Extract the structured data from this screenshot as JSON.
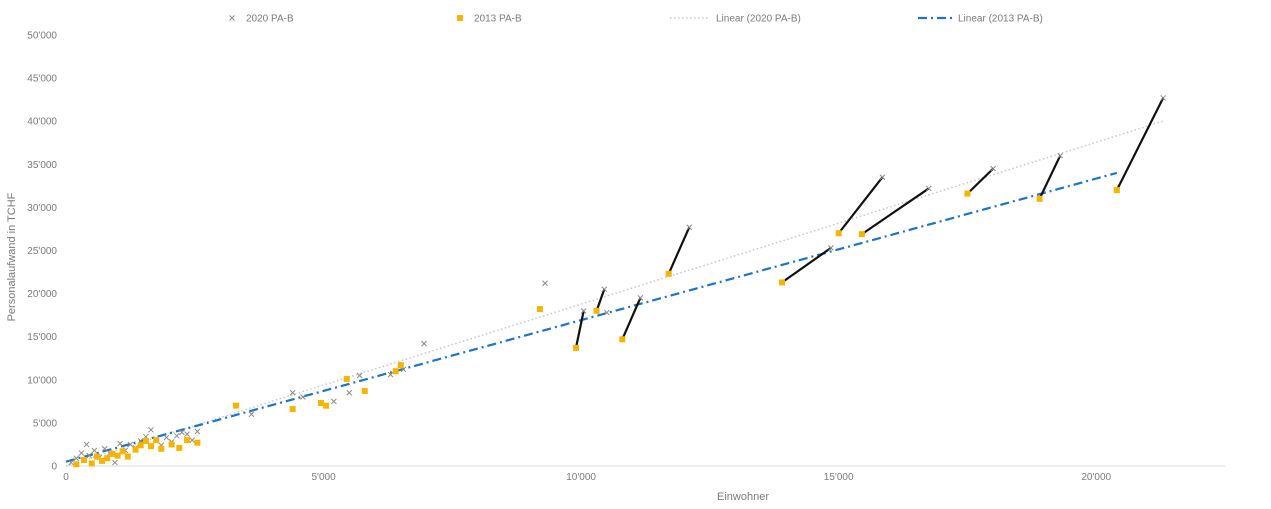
{
  "chart_data": {
    "type": "scatter",
    "title": "",
    "xlabel": "Einwohner",
    "ylabel": "Personalaufwand in TCHF",
    "xlim": [
      0,
      22500
    ],
    "ylim": [
      0,
      50000
    ],
    "x_ticks": [
      0,
      5000,
      10000,
      15000,
      20000
    ],
    "x_tick_labels": [
      "0",
      "5'000",
      "10'000",
      "15'000",
      "20'000"
    ],
    "y_ticks": [
      0,
      5000,
      10000,
      15000,
      20000,
      25000,
      30000,
      35000,
      40000,
      45000,
      50000
    ],
    "y_tick_labels": [
      "0",
      "5'000",
      "10'000",
      "15'000",
      "20'000",
      "25'000",
      "30'000",
      "35'000",
      "40'000",
      "45'000",
      "50'000"
    ],
    "grid": false,
    "legend_position": "top",
    "legend": [
      {
        "label": "2020 PA-B",
        "marker": "x",
        "color": "#8a8a8a"
      },
      {
        "label": "2013 PA-B",
        "marker": "square",
        "color": "#f5b400"
      },
      {
        "label": "Linear (2020 PA-B)",
        "line": "dotted",
        "color": "#c8c8c8"
      },
      {
        "label": "Linear (2013 PA-B)",
        "line": "dash-dot",
        "color": "#1f73c0"
      }
    ],
    "series": [
      {
        "name": "2020 PA-B",
        "marker": "x",
        "color": "#8a8a8a",
        "points": [
          {
            "x": 100,
            "y": 400
          },
          {
            "x": 200,
            "y": 900
          },
          {
            "x": 300,
            "y": 1500
          },
          {
            "x": 400,
            "y": 2500
          },
          {
            "x": 450,
            "y": 1200
          },
          {
            "x": 550,
            "y": 1800
          },
          {
            "x": 650,
            "y": 1000
          },
          {
            "x": 750,
            "y": 2000
          },
          {
            "x": 850,
            "y": 1500
          },
          {
            "x": 950,
            "y": 400
          },
          {
            "x": 1050,
            "y": 2600
          },
          {
            "x": 1150,
            "y": 1800
          },
          {
            "x": 1250,
            "y": 2500
          },
          {
            "x": 1350,
            "y": 2100
          },
          {
            "x": 1450,
            "y": 2900
          },
          {
            "x": 1550,
            "y": 3400
          },
          {
            "x": 1650,
            "y": 4200
          },
          {
            "x": 1750,
            "y": 3100
          },
          {
            "x": 1850,
            "y": 2400
          },
          {
            "x": 1950,
            "y": 3300
          },
          {
            "x": 2050,
            "y": 2800
          },
          {
            "x": 2150,
            "y": 3500
          },
          {
            "x": 2250,
            "y": 3900
          },
          {
            "x": 2350,
            "y": 3700
          },
          {
            "x": 2450,
            "y": 3000
          },
          {
            "x": 2550,
            "y": 4000
          },
          {
            "x": 3600,
            "y": 6000
          },
          {
            "x": 4400,
            "y": 8500
          },
          {
            "x": 4600,
            "y": 8000
          },
          {
            "x": 5200,
            "y": 7500
          },
          {
            "x": 5500,
            "y": 8500
          },
          {
            "x": 5700,
            "y": 10500
          },
          {
            "x": 6300,
            "y": 10600
          },
          {
            "x": 6550,
            "y": 11200
          },
          {
            "x": 6950,
            "y": 14200
          },
          {
            "x": 9300,
            "y": 21200
          },
          {
            "x": 10050,
            "y": 18000
          },
          {
            "x": 10450,
            "y": 20500
          },
          {
            "x": 10500,
            "y": 17800
          },
          {
            "x": 11150,
            "y": 19500
          },
          {
            "x": 12100,
            "y": 27700
          },
          {
            "x": 14850,
            "y": 25300
          },
          {
            "x": 15850,
            "y": 33500
          },
          {
            "x": 16750,
            "y": 32200
          },
          {
            "x": 18000,
            "y": 34500
          },
          {
            "x": 19300,
            "y": 36000
          },
          {
            "x": 21300,
            "y": 42700
          }
        ]
      },
      {
        "name": "2013 PA-B",
        "marker": "square",
        "color": "#f5b400",
        "points": [
          {
            "x": 200,
            "y": 200
          },
          {
            "x": 350,
            "y": 700
          },
          {
            "x": 500,
            "y": 300
          },
          {
            "x": 600,
            "y": 1100
          },
          {
            "x": 700,
            "y": 600
          },
          {
            "x": 800,
            "y": 900
          },
          {
            "x": 900,
            "y": 1400
          },
          {
            "x": 1000,
            "y": 1200
          },
          {
            "x": 1100,
            "y": 1700
          },
          {
            "x": 1200,
            "y": 1100
          },
          {
            "x": 1350,
            "y": 1900
          },
          {
            "x": 1450,
            "y": 2400
          },
          {
            "x": 1550,
            "y": 2900
          },
          {
            "x": 1650,
            "y": 2300
          },
          {
            "x": 1750,
            "y": 3000
          },
          {
            "x": 1850,
            "y": 2000
          },
          {
            "x": 2050,
            "y": 2500
          },
          {
            "x": 2200,
            "y": 2100
          },
          {
            "x": 2350,
            "y": 3000
          },
          {
            "x": 2550,
            "y": 2700
          },
          {
            "x": 3300,
            "y": 7000
          },
          {
            "x": 4400,
            "y": 6600
          },
          {
            "x": 4950,
            "y": 7300
          },
          {
            "x": 5050,
            "y": 7000
          },
          {
            "x": 5450,
            "y": 10100
          },
          {
            "x": 5800,
            "y": 8700
          },
          {
            "x": 6400,
            "y": 11000
          },
          {
            "x": 6500,
            "y": 11700
          },
          {
            "x": 9200,
            "y": 18200
          },
          {
            "x": 9900,
            "y": 13700
          },
          {
            "x": 10300,
            "y": 18000
          },
          {
            "x": 10800,
            "y": 14700
          },
          {
            "x": 11700,
            "y": 22300
          },
          {
            "x": 13900,
            "y": 21300
          },
          {
            "x": 15000,
            "y": 27000
          },
          {
            "x": 15450,
            "y": 26900
          },
          {
            "x": 17500,
            "y": 31600
          },
          {
            "x": 18900,
            "y": 31000
          },
          {
            "x": 20400,
            "y": 32000
          }
        ]
      }
    ],
    "connectors": [
      {
        "from": [
          9900,
          13700
        ],
        "to": [
          10050,
          18000
        ]
      },
      {
        "from": [
          10300,
          18000
        ],
        "to": [
          10450,
          20500
        ]
      },
      {
        "from": [
          10800,
          14700
        ],
        "to": [
          11150,
          19500
        ]
      },
      {
        "from": [
          11700,
          22300
        ],
        "to": [
          12100,
          27700
        ]
      },
      {
        "from": [
          13900,
          21300
        ],
        "to": [
          14850,
          25300
        ]
      },
      {
        "from": [
          15000,
          27000
        ],
        "to": [
          15850,
          33500
        ]
      },
      {
        "from": [
          15450,
          26900
        ],
        "to": [
          16750,
          32200
        ]
      },
      {
        "from": [
          17500,
          31600
        ],
        "to": [
          18000,
          34500
        ]
      },
      {
        "from": [
          18900,
          31000
        ],
        "to": [
          19300,
          36000
        ]
      },
      {
        "from": [
          20400,
          32000
        ],
        "to": [
          21300,
          42700
        ]
      }
    ],
    "trendlines": [
      {
        "name": "Linear (2020 PA-B)",
        "style": "dotted",
        "color": "#c8c8c8",
        "x": [
          0,
          21300
        ],
        "y": [
          0,
          40000
        ]
      },
      {
        "name": "Linear (2013 PA-B)",
        "style": "dash-dot",
        "color": "#1f73c0",
        "x": [
          0,
          20400
        ],
        "y": [
          500,
          34000
        ]
      }
    ]
  }
}
